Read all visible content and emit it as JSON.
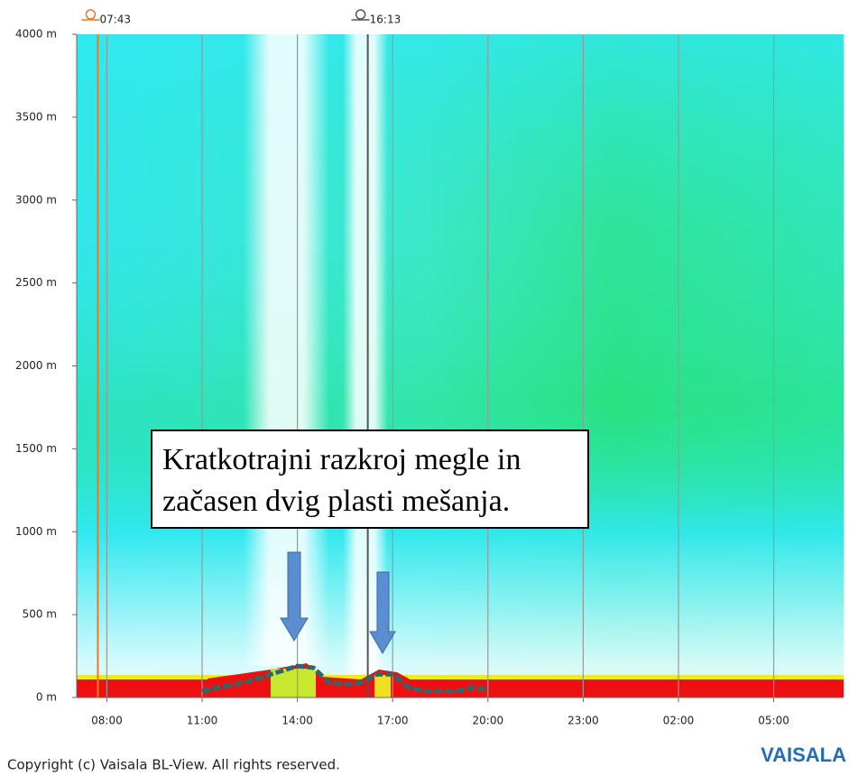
{
  "chart_data": {
    "type": "line",
    "xlim": [
      7.05,
      31.2
    ],
    "ylim": [
      0,
      4000
    ],
    "xticks": [
      {
        "value": 8,
        "label": "08:00"
      },
      {
        "value": 11,
        "label": "11:00"
      },
      {
        "value": 14,
        "label": "14:00"
      },
      {
        "value": 17,
        "label": "17:00"
      },
      {
        "value": 20,
        "label": "20:00"
      },
      {
        "value": 23,
        "label": "23:00"
      },
      {
        "value": 26,
        "label": "02:00"
      },
      {
        "value": 29,
        "label": "05:00"
      }
    ],
    "yticks": [
      {
        "value": 0,
        "label": "0 m"
      },
      {
        "value": 500,
        "label": "500 m"
      },
      {
        "value": 1000,
        "label": "1000 m"
      },
      {
        "value": 1500,
        "label": "1500 m"
      },
      {
        "value": 2000,
        "label": "2000 m"
      },
      {
        "value": 2500,
        "label": "2500 m"
      },
      {
        "value": 3000,
        "label": "3000 m"
      },
      {
        "value": 3500,
        "label": "3500 m"
      },
      {
        "value": 4000,
        "label": "4000 m"
      }
    ],
    "xgrid": true,
    "sun_markers": [
      {
        "value": 7.7167,
        "label": "07:43",
        "color": "#f07820"
      },
      {
        "value": 16.2167,
        "label": "16:13",
        "color": "#555555"
      }
    ],
    "x": [
      11.0,
      11.5,
      12.0,
      12.5,
      13.0,
      13.5,
      14.0,
      14.5,
      15.0,
      15.5,
      16.0,
      16.5,
      17.0,
      17.5,
      18.0,
      19.0,
      19.5,
      20.0
    ],
    "series": [
      {
        "color": "#2a6a6a",
        "values": [
          40,
          60,
          80,
          100,
          130,
          160,
          190,
          180,
          90,
          80,
          90,
          140,
          140,
          60,
          40,
          40,
          60,
          50
        ]
      }
    ],
    "annotation": [
      "Kratkotrajni razkroj megle in",
      "začasen dvig plasti mešanja."
    ],
    "footer": "Copyright (c) Vaisala BL-View. All rights reserved.",
    "brand": "VAISALA"
  }
}
